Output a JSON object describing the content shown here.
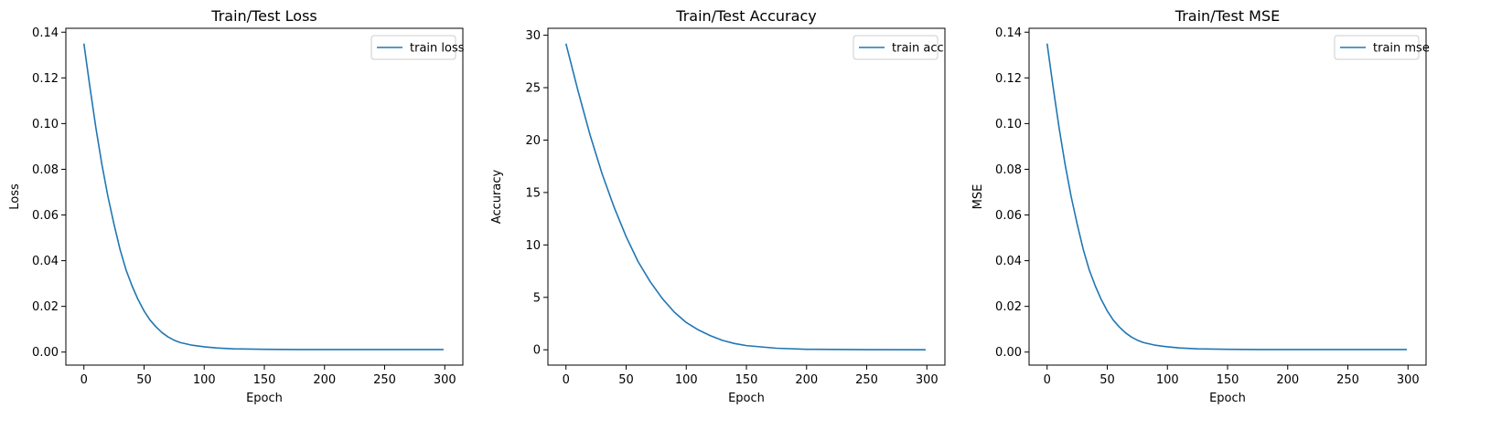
{
  "figure": {
    "background": "#ffffff",
    "line_color": "#1f77b4"
  },
  "chart_data": [
    {
      "type": "line",
      "title": "Train/Test Loss",
      "xlabel": "Epoch",
      "ylabel": "Loss",
      "xlim": [
        -15,
        315
      ],
      "ylim": [
        -0.0057,
        0.1417
      ],
      "xticks": [
        0,
        50,
        100,
        150,
        200,
        250,
        300
      ],
      "yticks": [
        0.0,
        0.02,
        0.04,
        0.06,
        0.08,
        0.1,
        0.12,
        0.14
      ],
      "ytick_labels": [
        "0.00",
        "0.02",
        "0.04",
        "0.06",
        "0.08",
        "0.10",
        "0.12",
        "0.14"
      ],
      "legend": {
        "position": "upper right",
        "entries": [
          "train loss"
        ]
      },
      "grid": false,
      "series": [
        {
          "name": "train loss",
          "color": "#1f77b4",
          "x": [
            0,
            5,
            10,
            15,
            20,
            25,
            30,
            35,
            40,
            45,
            50,
            55,
            60,
            65,
            70,
            75,
            80,
            90,
            100,
            110,
            125,
            150,
            175,
            200,
            250,
            299
          ],
          "y": [
            0.135,
            0.116,
            0.098,
            0.082,
            0.068,
            0.056,
            0.045,
            0.036,
            0.029,
            0.023,
            0.018,
            0.014,
            0.011,
            0.0085,
            0.0066,
            0.0052,
            0.0042,
            0.003,
            0.0023,
            0.0018,
            0.0014,
            0.0012,
            0.0011,
            0.0011,
            0.0011,
            0.0011
          ]
        }
      ]
    },
    {
      "type": "line",
      "title": "Train/Test Accuracy",
      "xlabel": "Epoch",
      "ylabel": "Accuracy",
      "xlim": [
        -15,
        315
      ],
      "ylim": [
        -1.46,
        30.66
      ],
      "xticks": [
        0,
        50,
        100,
        150,
        200,
        250,
        300
      ],
      "yticks": [
        0,
        5,
        10,
        15,
        20,
        25,
        30
      ],
      "ytick_labels": [
        "0",
        "5",
        "10",
        "15",
        "20",
        "25",
        "30"
      ],
      "legend": {
        "position": "upper right",
        "entries": [
          "train acc"
        ]
      },
      "grid": false,
      "series": [
        {
          "name": "train acc",
          "color": "#1f77b4",
          "x": [
            0,
            10,
            20,
            30,
            40,
            50,
            60,
            70,
            80,
            90,
            100,
            110,
            120,
            130,
            140,
            150,
            175,
            200,
            250,
            299
          ],
          "y": [
            29.2,
            24.7,
            20.5,
            16.8,
            13.6,
            10.8,
            8.4,
            6.5,
            4.9,
            3.6,
            2.6,
            1.9,
            1.35,
            0.9,
            0.6,
            0.4,
            0.15,
            0.05,
            0.01,
            0.0
          ]
        }
      ]
    },
    {
      "type": "line",
      "title": "Train/Test MSE",
      "xlabel": "Epoch",
      "ylabel": "MSE",
      "xlim": [
        -15,
        315
      ],
      "ylim": [
        -0.0057,
        0.1417
      ],
      "xticks": [
        0,
        50,
        100,
        150,
        200,
        250,
        300
      ],
      "yticks": [
        0.0,
        0.02,
        0.04,
        0.06,
        0.08,
        0.1,
        0.12,
        0.14
      ],
      "ytick_labels": [
        "0.00",
        "0.02",
        "0.04",
        "0.06",
        "0.08",
        "0.10",
        "0.12",
        "0.14"
      ],
      "legend": {
        "position": "upper right",
        "entries": [
          "train mse"
        ]
      },
      "grid": false,
      "series": [
        {
          "name": "train mse",
          "color": "#1f77b4",
          "x": [
            0,
            5,
            10,
            15,
            20,
            25,
            30,
            35,
            40,
            45,
            50,
            55,
            60,
            65,
            70,
            75,
            80,
            90,
            100,
            110,
            125,
            150,
            175,
            200,
            250,
            299
          ],
          "y": [
            0.135,
            0.116,
            0.098,
            0.082,
            0.068,
            0.056,
            0.045,
            0.036,
            0.029,
            0.023,
            0.018,
            0.014,
            0.011,
            0.0085,
            0.0066,
            0.0052,
            0.0042,
            0.003,
            0.0023,
            0.0018,
            0.0014,
            0.0012,
            0.0011,
            0.0011,
            0.0011,
            0.0011
          ]
        }
      ]
    }
  ]
}
